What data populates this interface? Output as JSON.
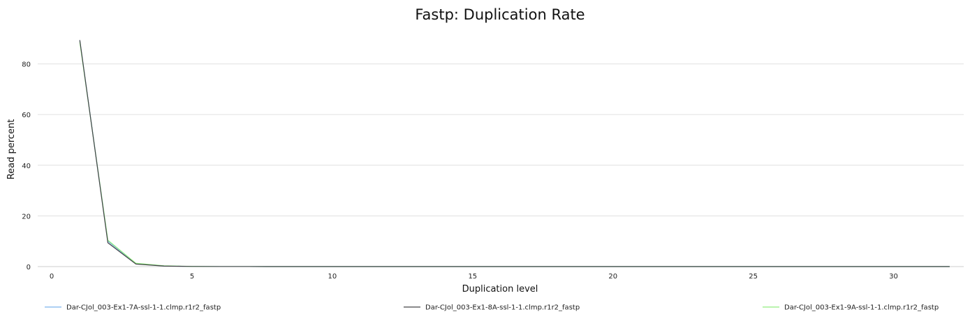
{
  "chart_data": {
    "type": "line",
    "title": "Fastp: Duplication Rate",
    "xlabel": "Duplication level",
    "ylabel": "Read percent",
    "xlim": [
      -0.5,
      32.5
    ],
    "ylim": [
      0,
      92
    ],
    "x_ticks": [
      0,
      5,
      10,
      15,
      20,
      25,
      30
    ],
    "y_ticks": [
      0,
      20,
      40,
      60,
      80
    ],
    "grid": "horizontal",
    "legend_position": "bottom",
    "x": [
      1,
      2,
      3,
      4,
      5,
      6,
      7,
      8,
      9,
      10,
      11,
      12,
      13,
      14,
      15,
      16,
      17,
      18,
      19,
      20,
      21,
      22,
      23,
      24,
      25,
      26,
      27,
      28,
      29,
      30,
      31,
      32
    ],
    "series": [
      {
        "name": "Dar-CJol_003-Ex1-7A-ssl-1-1.clmp.r1r2_fastp",
        "color": "#7cb5ec",
        "values": [
          89.2,
          10.0,
          1.2,
          0.25,
          0.06,
          0.02,
          0.01,
          0,
          0,
          0,
          0,
          0,
          0,
          0,
          0,
          0,
          0,
          0,
          0,
          0,
          0,
          0,
          0,
          0,
          0,
          0,
          0,
          0,
          0,
          0,
          0,
          0
        ]
      },
      {
        "name": "Dar-CJol_003-Ex1-8A-ssl-1-1.clmp.r1r2_fastp",
        "color": "#434348",
        "values": [
          89.4,
          9.4,
          1.0,
          0.2,
          0.05,
          0.02,
          0.01,
          0,
          0,
          0,
          0,
          0,
          0,
          0,
          0,
          0,
          0,
          0,
          0,
          0,
          0,
          0,
          0,
          0,
          0,
          0,
          0,
          0,
          0,
          0,
          0,
          0
        ]
      },
      {
        "name": "Dar-CJol_003-Ex1-9A-ssl-1-1.clmp.r1r2_fastp",
        "color": "#90ed7d",
        "values": [
          88.6,
          10.4,
          1.3,
          0.3,
          0.07,
          0.02,
          0.01,
          0,
          0,
          0,
          0,
          0,
          0,
          0,
          0,
          0,
          0,
          0,
          0,
          0,
          0,
          0,
          0,
          0,
          0,
          0,
          0,
          0,
          0,
          0,
          0,
          0
        ]
      }
    ]
  }
}
